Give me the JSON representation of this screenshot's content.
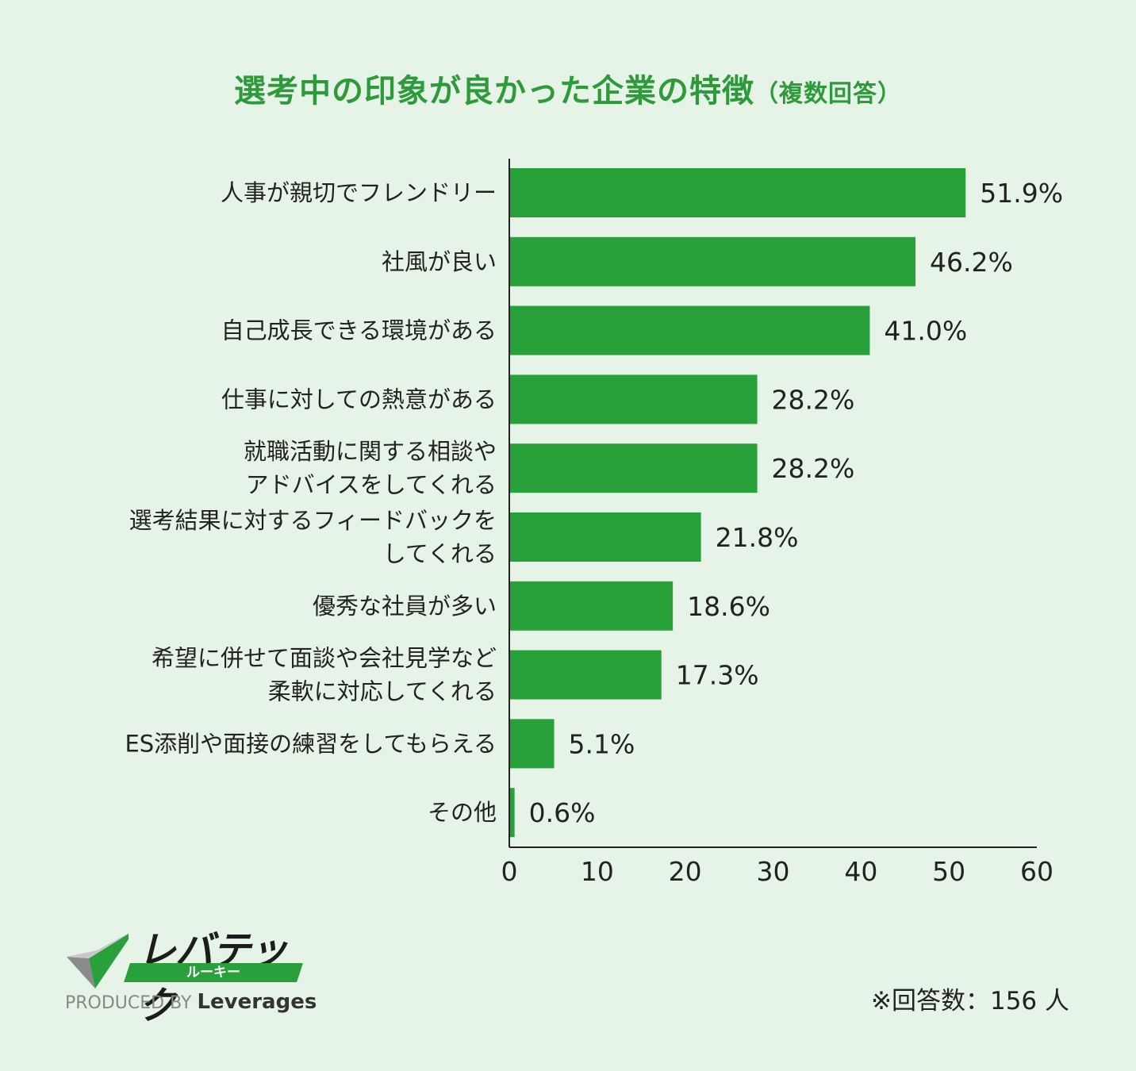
{
  "title": "選考中の印象が良かった企業の特徴",
  "subtitle": "（複数回答）",
  "chart_data": {
    "type": "bar",
    "orientation": "horizontal",
    "categories": [
      [
        "人事が親切でフレンドリー"
      ],
      [
        "社風が良い"
      ],
      [
        "自己成長できる環境がある"
      ],
      [
        "仕事に対しての熱意がある"
      ],
      [
        "就職活動に関する相談や",
        "アドバイスをしてくれる"
      ],
      [
        "選考結果に対するフィードバックを",
        "してくれる"
      ],
      [
        "優秀な社員が多い"
      ],
      [
        "希望に併せて面談や会社見学など",
        "柔軟に対応してくれる"
      ],
      [
        "ES添削や面接の練習をしてもらえる"
      ],
      [
        "その他"
      ]
    ],
    "values": [
      51.9,
      46.2,
      41.0,
      28.2,
      28.2,
      21.8,
      18.6,
      17.3,
      5.1,
      0.6
    ],
    "value_labels": [
      "51.9%",
      "46.2%",
      "41.0%",
      "28.2%",
      "28.2%",
      "21.8%",
      "18.6%",
      "17.3%",
      "5.1%",
      "0.6%"
    ],
    "xlim": [
      0,
      60
    ],
    "xticks": [
      "0",
      "10",
      "20",
      "30",
      "40",
      "50",
      "60"
    ],
    "bar_color": "#28a13b",
    "grid": false
  },
  "logo": {
    "name": "レバテック",
    "band_text": "ルーキー",
    "produced_by": "PRODUCED BY",
    "company": "Leverages",
    "accent": "#2aa03d"
  },
  "note": "※回答数：156 人"
}
